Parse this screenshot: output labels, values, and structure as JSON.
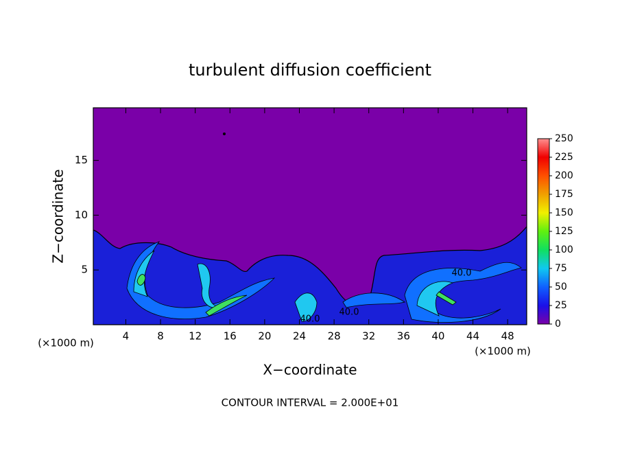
{
  "chart_data": {
    "type": "contour",
    "title": "turbulent diffusion coefficient",
    "x_label": "X−coordinate",
    "y_label": "Z−coordinate",
    "x_unit": "(×1000 m)",
    "footer": "CONTOUR INTERVAL = 2.000E+01",
    "xlim": [
      0.25,
      50.2
    ],
    "xticks": [
      4,
      8,
      12,
      16,
      20,
      24,
      28,
      32,
      36,
      40,
      44,
      48
    ],
    "ylim": [
      0,
      19.8
    ],
    "yticks": [
      5,
      10,
      15
    ],
    "contour_labels": [
      "40.0",
      "40.0",
      "40.0"
    ],
    "colorbar": {
      "lim": [
        0,
        250
      ],
      "ticks": [
        0,
        25,
        50,
        75,
        100,
        125,
        150,
        175,
        200,
        225,
        250
      ],
      "colors": [
        "#7a00a8",
        "#1a10e8",
        "#1060ff",
        "#10c8f0",
        "#10e060",
        "#60f010",
        "#f0f000",
        "#f0a000",
        "#ff5000",
        "#f00000",
        "#ff9090"
      ]
    }
  }
}
